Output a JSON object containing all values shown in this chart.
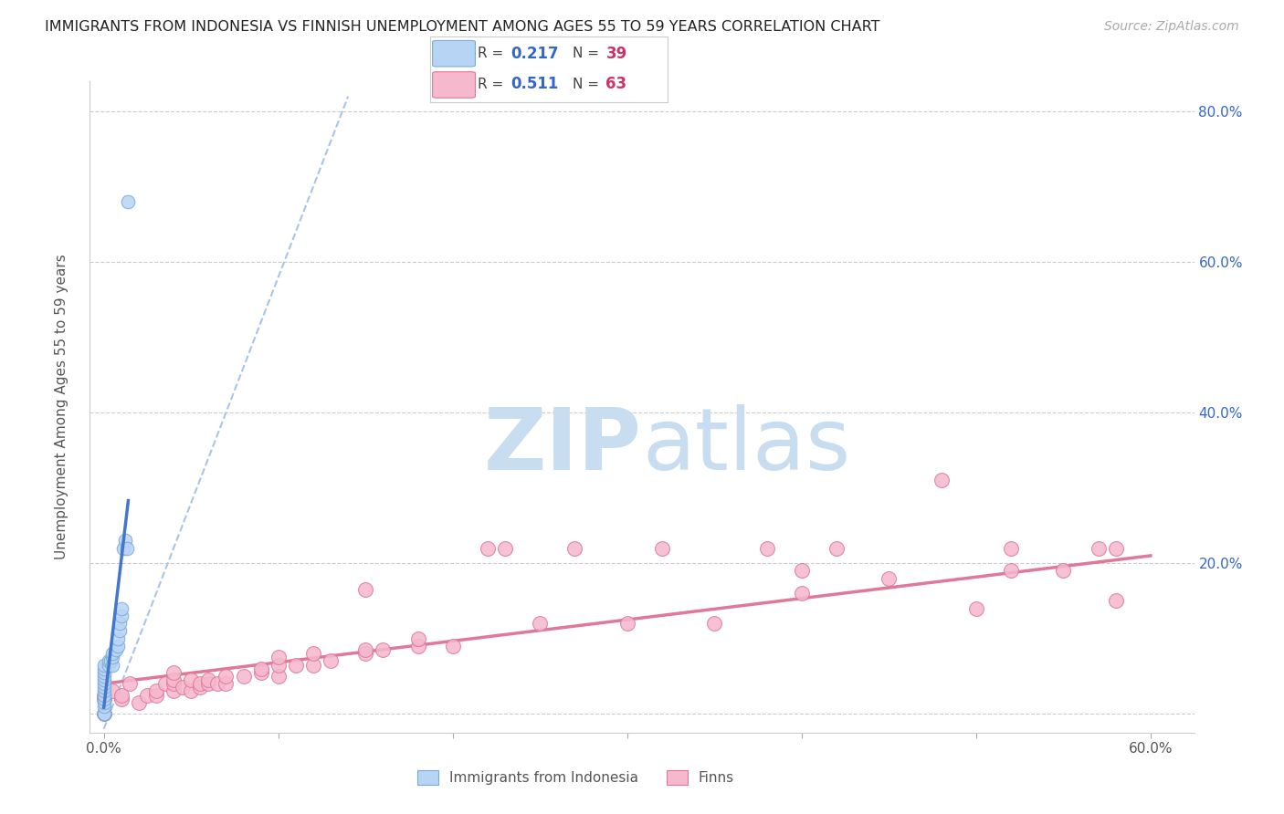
{
  "title": "IMMIGRANTS FROM INDONESIA VS FINNISH UNEMPLOYMENT AMONG AGES 55 TO 59 YEARS CORRELATION CHART",
  "source": "Source: ZipAtlas.com",
  "ylabel": "Unemployment Among Ages 55 to 59 years",
  "xlim": [
    -0.008,
    0.625
  ],
  "ylim": [
    -0.025,
    0.84
  ],
  "indonesia_color": "#b8d4f5",
  "indonesia_edge_color": "#7baad8",
  "finns_color": "#f5b8cc",
  "finns_edge_color": "#e07898",
  "indonesia_R": 0.217,
  "indonesia_N": 39,
  "finns_R": 0.511,
  "finns_N": 63,
  "trend_blue_dashed_color": "#aac4e8",
  "trend_blue_solid_color": "#4477cc",
  "trend_pink_color": "#e07898",
  "watermark_zip_color": "#c8ddf0",
  "watermark_atlas_color": "#c8ddf0",
  "legend_R_color": "#3366cc",
  "legend_N_color": "#cc3366",
  "indonesia_x": [
    0.0,
    0.0,
    0.0,
    0.0,
    0.0,
    0.0,
    0.0,
    0.0,
    0.0,
    0.0,
    0.0,
    0.0,
    0.0,
    0.0,
    0.0,
    0.0,
    0.0,
    0.0,
    0.0,
    0.0,
    0.0,
    0.0,
    0.003,
    0.003,
    0.004,
    0.005,
    0.005,
    0.005,
    0.007,
    0.008,
    0.008,
    0.009,
    0.009,
    0.01,
    0.01,
    0.011,
    0.012,
    0.013,
    0.014
  ],
  "indonesia_y": [
    0.0,
    0.0,
    0.0,
    0.0,
    0.0,
    0.0,
    0.0,
    0.0,
    0.0,
    0.0,
    0.01,
    0.015,
    0.02,
    0.025,
    0.03,
    0.035,
    0.04,
    0.045,
    0.05,
    0.055,
    0.06,
    0.065,
    0.065,
    0.07,
    0.07,
    0.065,
    0.075,
    0.08,
    0.085,
    0.09,
    0.1,
    0.11,
    0.12,
    0.13,
    0.14,
    0.22,
    0.23,
    0.22,
    0.68
  ],
  "finns_x": [
    0.0,
    0.0,
    0.0,
    0.005,
    0.01,
    0.01,
    0.015,
    0.02,
    0.025,
    0.03,
    0.03,
    0.035,
    0.04,
    0.04,
    0.04,
    0.04,
    0.045,
    0.05,
    0.05,
    0.055,
    0.055,
    0.06,
    0.06,
    0.065,
    0.07,
    0.07,
    0.08,
    0.09,
    0.09,
    0.1,
    0.1,
    0.1,
    0.11,
    0.12,
    0.12,
    0.13,
    0.15,
    0.15,
    0.15,
    0.16,
    0.18,
    0.18,
    0.2,
    0.22,
    0.23,
    0.25,
    0.27,
    0.3,
    0.32,
    0.35,
    0.38,
    0.4,
    0.4,
    0.42,
    0.45,
    0.48,
    0.5,
    0.52,
    0.52,
    0.55,
    0.57,
    0.58,
    0.58
  ],
  "finns_y": [
    0.0,
    0.02,
    0.025,
    0.03,
    0.02,
    0.025,
    0.04,
    0.015,
    0.025,
    0.025,
    0.03,
    0.04,
    0.03,
    0.04,
    0.045,
    0.055,
    0.035,
    0.03,
    0.045,
    0.035,
    0.04,
    0.04,
    0.045,
    0.04,
    0.04,
    0.05,
    0.05,
    0.055,
    0.06,
    0.05,
    0.065,
    0.075,
    0.065,
    0.065,
    0.08,
    0.07,
    0.08,
    0.085,
    0.165,
    0.085,
    0.09,
    0.1,
    0.09,
    0.22,
    0.22,
    0.12,
    0.22,
    0.12,
    0.22,
    0.12,
    0.22,
    0.16,
    0.19,
    0.22,
    0.18,
    0.31,
    0.14,
    0.22,
    0.19,
    0.19,
    0.22,
    0.15,
    0.22
  ],
  "indo_trend_x0": 0.0,
  "indo_trend_y0": -0.02,
  "indo_trend_x1": 0.14,
  "indo_trend_y1": 0.82,
  "finn_trend_x0": 0.0,
  "finn_trend_y0": 0.04,
  "finn_trend_x1": 0.6,
  "finn_trend_y1": 0.21
}
